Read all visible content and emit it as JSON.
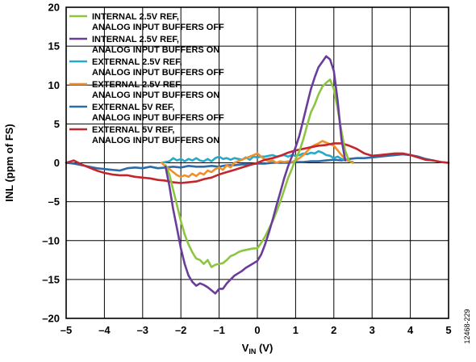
{
  "chart_data": {
    "type": "line",
    "xlabel": {
      "main": "V",
      "sub": "IN",
      "suffix": " (V)"
    },
    "ylabel": "INL (ppm of FS)",
    "xlim": [
      -5,
      5
    ],
    "ylim": [
      -20,
      20
    ],
    "x_ticks": [
      -5,
      -4,
      -3,
      -2,
      -1,
      0,
      1,
      2,
      3,
      4,
      5
    ],
    "y_ticks": [
      -20,
      -15,
      -10,
      -5,
      0,
      5,
      10,
      15,
      20
    ],
    "x_tick_labels": [
      "–5",
      "–4",
      "–3",
      "–2",
      "–1",
      "0",
      "1",
      "2",
      "3",
      "4",
      "5"
    ],
    "y_tick_labels": [
      "–20",
      "–15",
      "–10",
      "–5",
      "0",
      "5",
      "10",
      "15",
      "20"
    ],
    "grid": true,
    "legend_position": "top-left",
    "figure_id": "12468-229",
    "series": [
      {
        "name": [
          "INTERNAL 2.5V REF,",
          "ANALOG INPUT BUFFERS OFF"
        ],
        "color": "#8cc63f",
        "x": [
          -2.4,
          -2.3,
          -2.2,
          -2.1,
          -2.0,
          -1.9,
          -1.8,
          -1.7,
          -1.6,
          -1.5,
          -1.4,
          -1.3,
          -1.2,
          -1.1,
          -1.0,
          -0.9,
          -0.8,
          -0.7,
          -0.6,
          -0.5,
          -0.4,
          -0.3,
          -0.2,
          -0.1,
          0.0,
          0.1,
          0.2,
          0.3,
          0.4,
          0.5,
          0.6,
          0.7,
          0.8,
          0.9,
          1.0,
          1.1,
          1.2,
          1.3,
          1.4,
          1.5,
          1.6,
          1.7,
          1.8,
          1.9,
          2.0,
          2.1,
          2.2,
          2.3,
          2.4
        ],
        "y": [
          -0.3,
          -1.5,
          -3.5,
          -5.5,
          -7.5,
          -9.2,
          -10.5,
          -11.5,
          -12.3,
          -12.5,
          -13.0,
          -12.5,
          -13.4,
          -13.1,
          -13.0,
          -12.9,
          -12.5,
          -12.0,
          -11.8,
          -11.5,
          -11.3,
          -11.2,
          -11.1,
          -11.0,
          -11.0,
          -10.3,
          -9.5,
          -8.5,
          -7.5,
          -6.3,
          -5.0,
          -3.5,
          -2.0,
          -0.8,
          0.5,
          1.5,
          3.0,
          4.8,
          6.5,
          7.5,
          8.8,
          9.8,
          10.3,
          10.7,
          9.5,
          7.0,
          4.0,
          1.5,
          0.2
        ]
      },
      {
        "name": [
          "INTERNAL 2.5V  REF,",
          "ANALOG INPUT BUFFERS ON"
        ],
        "color": "#6a3d9a",
        "x": [
          -2.4,
          -2.3,
          -2.2,
          -2.1,
          -2.0,
          -1.9,
          -1.8,
          -1.7,
          -1.6,
          -1.5,
          -1.4,
          -1.3,
          -1.2,
          -1.1,
          -1.0,
          -0.9,
          -0.8,
          -0.7,
          -0.6,
          -0.5,
          -0.4,
          -0.3,
          -0.2,
          -0.1,
          0.0,
          0.1,
          0.2,
          0.3,
          0.4,
          0.5,
          0.6,
          0.7,
          0.8,
          0.9,
          1.0,
          1.1,
          1.2,
          1.3,
          1.4,
          1.5,
          1.6,
          1.7,
          1.8,
          1.9,
          2.0,
          2.1,
          2.2,
          2.3
        ],
        "y": [
          -0.5,
          -3.0,
          -6.0,
          -8.5,
          -11.0,
          -13.0,
          -14.5,
          -15.3,
          -15.8,
          -15.5,
          -15.7,
          -16.0,
          -16.4,
          -16.8,
          -16.2,
          -16.2,
          -15.5,
          -15.0,
          -14.5,
          -14.2,
          -13.9,
          -13.5,
          -13.2,
          -12.9,
          -12.6,
          -11.8,
          -10.5,
          -9.0,
          -7.3,
          -5.5,
          -3.8,
          -2.0,
          -0.5,
          0.8,
          2.0,
          3.5,
          5.5,
          7.5,
          9.5,
          11.0,
          12.3,
          13.0,
          13.7,
          13.3,
          11.8,
          8.0,
          3.0,
          0.3
        ]
      },
      {
        "name": [
          "EXTERNAL 2.5V REF,",
          "ANALOG INPUT BUFFERS OFF"
        ],
        "color": "#27a9c7",
        "x": [
          -2.5,
          -2.4,
          -2.3,
          -2.2,
          -2.1,
          -2.0,
          -1.9,
          -1.8,
          -1.7,
          -1.6,
          -1.5,
          -1.4,
          -1.3,
          -1.2,
          -1.1,
          -1.0,
          -0.9,
          -0.8,
          -0.7,
          -0.6,
          -0.5,
          -0.4,
          -0.3,
          -0.2,
          -0.1,
          0.0,
          0.1,
          0.2,
          0.3,
          0.4,
          0.5,
          0.6,
          0.7,
          0.8,
          0.9,
          1.0,
          1.1,
          1.2,
          1.3,
          1.4,
          1.5,
          1.6,
          1.7,
          1.8,
          1.9,
          2.0,
          2.1,
          2.2,
          2.3,
          2.4,
          2.5
        ],
        "y": [
          0.0,
          0.1,
          0.2,
          0.6,
          0.3,
          0.5,
          0.2,
          0.5,
          0.3,
          0.6,
          0.3,
          0.2,
          0.5,
          0.2,
          0.6,
          0.8,
          0.5,
          0.6,
          0.4,
          0.6,
          0.5,
          0.4,
          0.7,
          0.4,
          0.8,
          0.7,
          0.8,
          0.8,
          0.9,
          1.0,
          0.8,
          0.9,
          1.0,
          0.8,
          1.0,
          0.9,
          1.0,
          1.2,
          1.1,
          1.3,
          1.2,
          1.5,
          1.3,
          1.0,
          0.9,
          0.6,
          0.8,
          0.5,
          0.4,
          0.2,
          0.1
        ]
      },
      {
        "name": [
          "EXTERNAL 2.5V REF,",
          "ANALOG INPUT BUFFERS ON"
        ],
        "color": "#f0902c",
        "x": [
          -2.5,
          -2.4,
          -2.3,
          -2.2,
          -2.1,
          -2.0,
          -1.9,
          -1.8,
          -1.7,
          -1.6,
          -1.5,
          -1.4,
          -1.3,
          -1.2,
          -1.1,
          -1.0,
          -0.9,
          -0.8,
          -0.7,
          -0.6,
          -0.5,
          -0.4,
          -0.3,
          -0.2,
          -0.1,
          0.0,
          0.1,
          0.2,
          0.3,
          0.4,
          0.5,
          0.6,
          0.7,
          0.8,
          0.9,
          1.0,
          1.1,
          1.2,
          1.3,
          1.4,
          1.5,
          1.6,
          1.7,
          1.8,
          1.9,
          2.0,
          2.1,
          2.2,
          2.3,
          2.4,
          2.5
        ],
        "y": [
          0.0,
          -0.5,
          -0.8,
          -1.2,
          -1.6,
          -1.8,
          -1.6,
          -1.8,
          -1.4,
          -1.7,
          -1.3,
          -1.5,
          -1.0,
          -1.2,
          -0.8,
          -0.6,
          -0.9,
          -0.3,
          -0.6,
          0.0,
          0.2,
          0.4,
          0.6,
          0.8,
          1.0,
          1.2,
          0.8,
          0.4,
          0.2,
          0.3,
          0.0,
          0.2,
          0.1,
          0.2,
          0.1,
          0.3,
          0.6,
          1.0,
          1.5,
          2.0,
          2.3,
          2.5,
          2.8,
          2.6,
          2.4,
          2.2,
          1.6,
          1.0,
          0.5,
          0.2,
          0.0
        ]
      },
      {
        "name": [
          "EXTERNAL 5V REF,",
          "ANALOG INPUT BUFFERS OFF"
        ],
        "color": "#2d6ca8",
        "x": [
          -5.0,
          -4.8,
          -4.6,
          -4.4,
          -4.2,
          -4.0,
          -3.8,
          -3.6,
          -3.4,
          -3.2,
          -3.0,
          -2.8,
          -2.6,
          -2.4,
          -2.2,
          -2.0,
          -1.8,
          -1.6,
          -1.4,
          -1.2,
          -1.0,
          -0.8,
          -0.6,
          -0.4,
          -0.2,
          0.0,
          0.2,
          0.4,
          0.6,
          0.8,
          1.0,
          1.2,
          1.4,
          1.6,
          1.8,
          2.0,
          2.2,
          2.4,
          2.6,
          2.8,
          3.0,
          3.2,
          3.4,
          3.6,
          3.8,
          4.0,
          4.2,
          4.4,
          4.6,
          4.8,
          5.0
        ],
        "y": [
          0.0,
          -0.1,
          -0.3,
          -0.5,
          -0.7,
          -0.8,
          -0.9,
          -1.0,
          -0.7,
          -0.6,
          -0.7,
          -0.5,
          -0.7,
          -0.6,
          -0.5,
          -0.6,
          -0.4,
          -0.5,
          -0.5,
          -0.4,
          -0.5,
          -0.3,
          -0.3,
          -0.2,
          -0.2,
          -0.1,
          -0.1,
          0.0,
          0.0,
          0.0,
          0.1,
          0.1,
          0.2,
          0.2,
          0.3,
          0.4,
          0.3,
          0.5,
          0.6,
          0.6,
          0.7,
          0.8,
          0.9,
          1.0,
          1.1,
          1.0,
          0.8,
          0.5,
          0.3,
          0.1,
          0.0
        ]
      },
      {
        "name": [
          "EXTERNAL 5V REF,",
          "ANALOG INPUT BUFFERS ON"
        ],
        "color": "#c1272d",
        "x": [
          -5.0,
          -4.8,
          -4.6,
          -4.4,
          -4.2,
          -4.0,
          -3.8,
          -3.6,
          -3.4,
          -3.2,
          -3.0,
          -2.8,
          -2.6,
          -2.4,
          -2.2,
          -2.0,
          -1.8,
          -1.6,
          -1.4,
          -1.2,
          -1.0,
          -0.8,
          -0.6,
          -0.4,
          -0.2,
          0.0,
          0.2,
          0.4,
          0.6,
          0.8,
          1.0,
          1.2,
          1.4,
          1.6,
          1.8,
          2.0,
          2.2,
          2.4,
          2.6,
          2.8,
          3.0,
          3.2,
          3.4,
          3.6,
          3.8,
          4.0,
          4.2,
          4.4,
          4.6,
          4.8,
          5.0
        ],
        "y": [
          0.0,
          0.3,
          -0.2,
          -0.6,
          -1.0,
          -1.3,
          -1.5,
          -1.6,
          -1.6,
          -1.8,
          -1.9,
          -2.0,
          -2.2,
          -2.3,
          -2.5,
          -2.6,
          -2.5,
          -2.4,
          -2.1,
          -1.9,
          -1.5,
          -1.2,
          -0.9,
          -0.6,
          -0.3,
          0.0,
          0.4,
          0.6,
          0.9,
          1.3,
          1.6,
          1.8,
          2.0,
          2.2,
          2.3,
          2.5,
          2.5,
          2.2,
          1.8,
          1.2,
          0.9,
          1.0,
          1.1,
          1.2,
          1.2,
          1.0,
          0.7,
          0.4,
          0.3,
          0.1,
          0.0
        ]
      }
    ]
  }
}
